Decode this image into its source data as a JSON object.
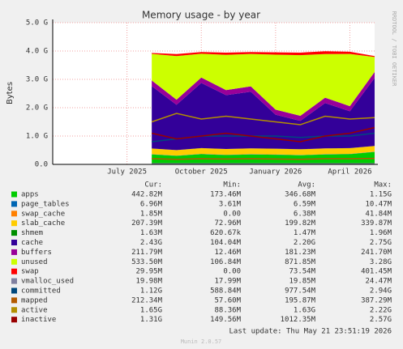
{
  "chart_data": {
    "type": "area",
    "title": "Memory usage - by year",
    "y_label": "Bytes",
    "side_note": "RRDTOOL / TOBI OETIKER",
    "x": [
      "2025-08",
      "2025-09",
      "2025-10",
      "2025-11",
      "2025-12",
      "2026-01",
      "2026-02",
      "2026-03",
      "2026-04",
      "2026-05"
    ],
    "xlim": [
      "2025-04",
      "2026-05"
    ],
    "xticks": [
      {
        "value": "2025-07",
        "label": "July 2025"
      },
      {
        "value": "2025-10",
        "label": "October 2025"
      },
      {
        "value": "2026-01",
        "label": "January 2026"
      },
      {
        "value": "2026-04",
        "label": "April 2026"
      }
    ],
    "ylim": [
      0,
      5
    ],
    "yticks": [
      {
        "value": 0,
        "label": "0.0"
      },
      {
        "value": 1,
        "label": "1.0 G"
      },
      {
        "value": 2,
        "label": "2.0 G"
      },
      {
        "value": 3,
        "label": "3.0 G"
      },
      {
        "value": 4,
        "label": "4.0 G"
      },
      {
        "value": 5,
        "label": "5.0 G"
      }
    ],
    "grid": true,
    "columns": [
      "Cur:",
      "Min:",
      "Avg:",
      "Max:"
    ],
    "series": [
      {
        "name": "apps",
        "color": "#00cc00",
        "style": "area",
        "values": [
          0.35,
          0.3,
          0.36,
          0.33,
          0.35,
          0.34,
          0.32,
          0.35,
          0.36,
          0.44
        ],
        "stats": [
          "442.82M",
          "173.46M",
          "346.68M",
          "1.15G"
        ]
      },
      {
        "name": "page_tables",
        "color": "#0066b3",
        "style": "area",
        "values": [
          0.007,
          0.006,
          0.007,
          0.006,
          0.007,
          0.006,
          0.007,
          0.007,
          0.007,
          0.007
        ],
        "stats": [
          "6.96M",
          "3.61M",
          "6.59M",
          "10.47M"
        ]
      },
      {
        "name": "swap_cache",
        "color": "#ff8000",
        "style": "area",
        "values": [
          0.002,
          0.006,
          0.006,
          0.006,
          0.006,
          0.006,
          0.006,
          0.006,
          0.006,
          0.002
        ],
        "stats": [
          "1.85M",
          "0.00",
          "6.38M",
          "41.84M"
        ]
      },
      {
        "name": "slab_cache",
        "color": "#ffcc00",
        "style": "area",
        "values": [
          0.2,
          0.19,
          0.2,
          0.2,
          0.2,
          0.2,
          0.2,
          0.2,
          0.2,
          0.2
        ],
        "stats": [
          "207.39M",
          "72.96M",
          "199.82M",
          "339.87M"
        ]
      },
      {
        "name": "shmem",
        "color": "#008f00",
        "style": "area",
        "values": [
          0.002,
          0.001,
          0.002,
          0.001,
          0.002,
          0.001,
          0.001,
          0.001,
          0.002,
          0.002
        ],
        "stats": [
          "1.63M",
          "620.67k",
          "1.47M",
          "1.96M"
        ]
      },
      {
        "name": "cache",
        "color": "#330099",
        "style": "area",
        "values": [
          2.2,
          1.6,
          2.3,
          1.9,
          2.0,
          1.2,
          1.0,
          1.6,
          1.3,
          2.4
        ],
        "stats": [
          "2.43G",
          "104.04M",
          "2.20G",
          "2.75G"
        ]
      },
      {
        "name": "buffers",
        "color": "#990099",
        "style": "area",
        "values": [
          0.2,
          0.18,
          0.19,
          0.18,
          0.19,
          0.18,
          0.18,
          0.19,
          0.18,
          0.21
        ],
        "stats": [
          "211.79M",
          "12.46M",
          "181.23M",
          "241.70M"
        ]
      },
      {
        "name": "unused",
        "color": "#ccff00",
        "style": "area",
        "values": [
          0.94,
          1.54,
          0.84,
          1.24,
          1.14,
          1.94,
          2.14,
          1.54,
          1.84,
          0.53
        ],
        "stats": [
          "533.50M",
          "106.84M",
          "871.85M",
          "3.28G"
        ]
      },
      {
        "name": "swap",
        "color": "#ff0000",
        "style": "area",
        "values": [
          0.03,
          0.07,
          0.06,
          0.08,
          0.07,
          0.08,
          0.09,
          0.1,
          0.08,
          0.03
        ],
        "stats": [
          "29.95M",
          "0.00",
          "73.54M",
          "401.45M"
        ]
      },
      {
        "name": "vmalloc_used",
        "color": "#8080a0",
        "style": "line",
        "values": [
          0.02,
          0.02,
          0.02,
          0.02,
          0.02,
          0.02,
          0.02,
          0.02,
          0.02,
          0.02
        ],
        "stats": [
          "19.98M",
          "17.99M",
          "19.85M",
          "24.47M"
        ]
      },
      {
        "name": "committed",
        "color": "#00487d",
        "style": "line",
        "values": [
          0.8,
          0.9,
          1.0,
          1.0,
          1.0,
          1.0,
          0.95,
          1.0,
          1.0,
          1.1
        ],
        "stats": [
          "1.12G",
          "588.84M",
          "977.54M",
          "2.94G"
        ]
      },
      {
        "name": "mapped",
        "color": "#b35a00",
        "style": "line",
        "values": [
          0.2,
          0.18,
          0.2,
          0.19,
          0.2,
          0.19,
          0.18,
          0.2,
          0.2,
          0.21
        ],
        "stats": [
          "212.34M",
          "57.60M",
          "195.87M",
          "387.29M"
        ]
      },
      {
        "name": "active",
        "color": "#b38f00",
        "style": "line",
        "values": [
          1.5,
          1.8,
          1.6,
          1.7,
          1.6,
          1.5,
          1.4,
          1.7,
          1.6,
          1.65
        ],
        "stats": [
          "1.65G",
          "88.36M",
          "1.63G",
          "2.22G"
        ]
      },
      {
        "name": "inactive",
        "color": "#990000",
        "style": "line",
        "values": [
          1.1,
          0.9,
          1.0,
          1.1,
          1.0,
          0.9,
          0.8,
          1.0,
          1.1,
          1.3
        ],
        "stats": [
          "1.31G",
          "149.56M",
          "1012.35M",
          "2.57G"
        ]
      }
    ],
    "last_update": "Last update: Thu May 21 23:51:19 2026",
    "version": "Munin 2.0.57"
  }
}
